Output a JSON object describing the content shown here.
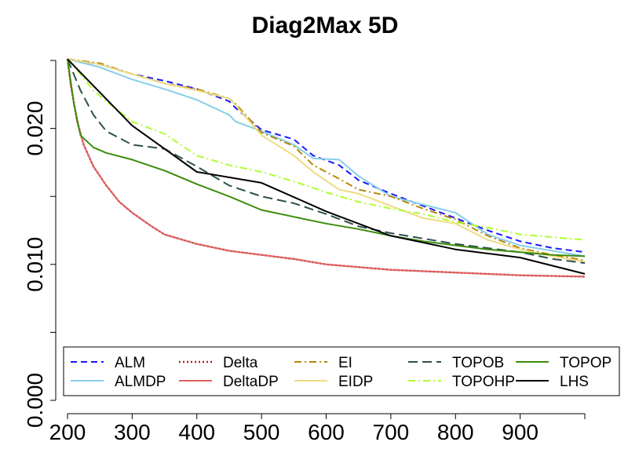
{
  "chart_data": {
    "type": "line",
    "title": "Diag2Max 5D",
    "xlabel": "",
    "ylabel": "",
    "xlim": [
      200,
      1000
    ],
    "ylim": [
      0.0,
      0.025
    ],
    "x_ticks": [
      200,
      300,
      400,
      500,
      600,
      700,
      800,
      900
    ],
    "x_tick_labels": [
      "200",
      "300",
      "400",
      "500",
      "600",
      "700",
      "800",
      "900"
    ],
    "y_ticks": [
      0.0,
      0.01,
      0.02
    ],
    "y_tick_labels": [
      "0.000",
      "0.010",
      "0.020"
    ],
    "grid": false,
    "legend_position": "bottom",
    "colors": {
      "ALM": "#1a1aff",
      "ALMDP": "#87ceeb",
      "Delta": "#b22222",
      "DeltaDP": "#e06060",
      "EI": "#b8860b",
      "EIDP": "#eedc82",
      "TOPOB": "#2f4f4f",
      "TOPOHP": "#adff2f",
      "TOPOP": "#3c8c0a",
      "LHS": "#000000"
    },
    "series": [
      {
        "name": "ALM",
        "style": "dashed",
        "x": [
          200,
          250,
          300,
          350,
          400,
          450,
          460,
          500,
          550,
          580,
          620,
          650,
          700,
          750,
          800,
          850,
          900,
          950,
          1000
        ],
        "y": [
          0.0251,
          0.0247,
          0.024,
          0.0235,
          0.0229,
          0.022,
          0.0215,
          0.0199,
          0.0192,
          0.018,
          0.0173,
          0.0162,
          0.0152,
          0.0143,
          0.0134,
          0.0125,
          0.0117,
          0.0112,
          0.0109
        ]
      },
      {
        "name": "ALMDP",
        "style": "solid",
        "x": [
          200,
          250,
          300,
          350,
          400,
          450,
          460,
          500,
          550,
          580,
          620,
          650,
          700,
          750,
          800,
          850,
          900,
          950,
          1000
        ],
        "y": [
          0.0251,
          0.0245,
          0.0236,
          0.0229,
          0.0221,
          0.021,
          0.0205,
          0.0198,
          0.0188,
          0.0178,
          0.0177,
          0.0165,
          0.015,
          0.0144,
          0.0138,
          0.0122,
          0.0114,
          0.011,
          0.0106
        ]
      },
      {
        "name": "Delta",
        "style": "dotted",
        "x": [
          200,
          205,
          215,
          225,
          240,
          260,
          280,
          300,
          330,
          350,
          400,
          450,
          500,
          550,
          600,
          700,
          800,
          900,
          1000
        ],
        "y": [
          0.0251,
          0.0232,
          0.0205,
          0.0188,
          0.0172,
          0.0158,
          0.0146,
          0.0138,
          0.0128,
          0.0122,
          0.0115,
          0.011,
          0.0107,
          0.0104,
          0.01,
          0.0096,
          0.0094,
          0.0092,
          0.0091
        ]
      },
      {
        "name": "DeltaDP",
        "style": "solid",
        "x": [
          200,
          205,
          215,
          225,
          240,
          260,
          280,
          300,
          330,
          350,
          400,
          450,
          500,
          550,
          600,
          700,
          800,
          900,
          1000
        ],
        "y": [
          0.0251,
          0.0232,
          0.0205,
          0.0188,
          0.0172,
          0.0158,
          0.0146,
          0.0138,
          0.0128,
          0.0122,
          0.0115,
          0.011,
          0.0107,
          0.0104,
          0.01,
          0.0096,
          0.0094,
          0.0092,
          0.0091
        ]
      },
      {
        "name": "EI",
        "style": "dashdot",
        "x": [
          200,
          250,
          300,
          350,
          400,
          450,
          460,
          500,
          550,
          580,
          620,
          650,
          700,
          750,
          800,
          850,
          900,
          950,
          1000
        ],
        "y": [
          0.0251,
          0.0248,
          0.024,
          0.0233,
          0.0229,
          0.0222,
          0.0218,
          0.0197,
          0.0187,
          0.0173,
          0.0163,
          0.0155,
          0.015,
          0.0141,
          0.0133,
          0.0121,
          0.0112,
          0.0107,
          0.0103
        ]
      },
      {
        "name": "EIDP",
        "style": "solid",
        "x": [
          200,
          250,
          300,
          350,
          400,
          450,
          460,
          500,
          550,
          580,
          620,
          650,
          700,
          750,
          800,
          850,
          900,
          950,
          1000
        ],
        "y": [
          0.0251,
          0.0247,
          0.024,
          0.0233,
          0.0228,
          0.0222,
          0.0217,
          0.0195,
          0.018,
          0.0168,
          0.0155,
          0.0152,
          0.0143,
          0.0134,
          0.013,
          0.0118,
          0.0111,
          0.0106,
          0.0102
        ]
      },
      {
        "name": "TOPOB",
        "style": "longdash",
        "x": [
          200,
          220,
          240,
          260,
          300,
          350,
          400,
          450,
          500,
          550,
          600,
          650,
          700,
          750,
          800,
          850,
          900,
          950,
          1000
        ],
        "y": [
          0.0251,
          0.0228,
          0.021,
          0.0198,
          0.0188,
          0.0185,
          0.0172,
          0.0158,
          0.015,
          0.0145,
          0.0137,
          0.0128,
          0.0123,
          0.0119,
          0.0115,
          0.0112,
          0.0109,
          0.0104,
          0.0101
        ]
      },
      {
        "name": "TOPOHP",
        "style": "dashdot",
        "x": [
          200,
          220,
          240,
          260,
          300,
          350,
          400,
          450,
          500,
          550,
          600,
          650,
          700,
          750,
          800,
          850,
          900,
          950,
          1000
        ],
        "y": [
          0.0251,
          0.024,
          0.0228,
          0.022,
          0.0205,
          0.0196,
          0.018,
          0.0173,
          0.0168,
          0.0161,
          0.0153,
          0.0146,
          0.0141,
          0.0137,
          0.0131,
          0.0127,
          0.0122,
          0.012,
          0.0118
        ]
      },
      {
        "name": "TOPOP",
        "style": "solid",
        "x": [
          200,
          210,
          220,
          240,
          260,
          300,
          350,
          400,
          450,
          500,
          550,
          600,
          650,
          700,
          750,
          800,
          850,
          900,
          950,
          1000
        ],
        "y": [
          0.0251,
          0.0218,
          0.0195,
          0.0186,
          0.0182,
          0.0177,
          0.0169,
          0.0159,
          0.015,
          0.014,
          0.0135,
          0.013,
          0.0126,
          0.0121,
          0.0117,
          0.0114,
          0.0111,
          0.0109,
          0.0107,
          0.0106
        ]
      },
      {
        "name": "LHS",
        "style": "solid",
        "x": [
          200,
          300,
          400,
          500,
          600,
          700,
          800,
          900,
          1000
        ],
        "y": [
          0.0251,
          0.0202,
          0.0168,
          0.016,
          0.0139,
          0.0121,
          0.0111,
          0.0105,
          0.0093
        ]
      }
    ]
  }
}
